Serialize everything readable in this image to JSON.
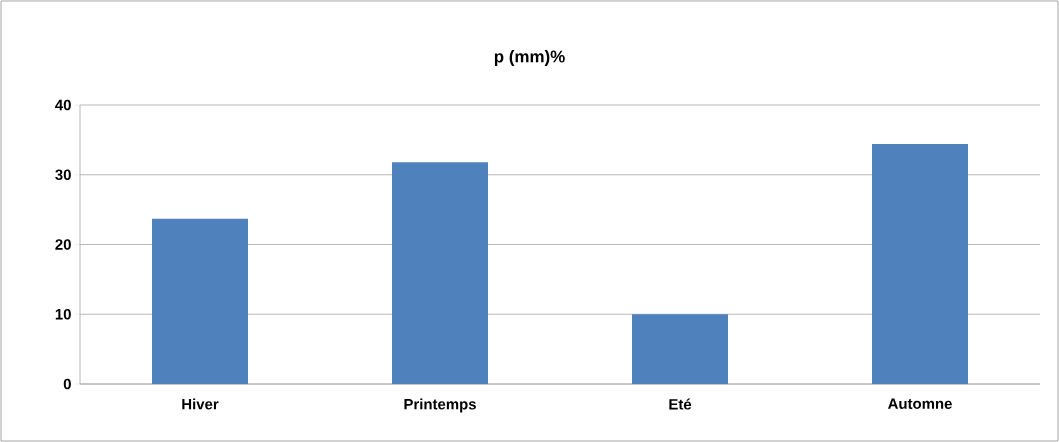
{
  "chart_data": {
    "type": "bar",
    "title": "p (mm)%",
    "categories": [
      "Hiver",
      "Printemps",
      "Eté",
      "Automne"
    ],
    "values": [
      23.7,
      31.8,
      10.0,
      34.4
    ],
    "color": "#4f81bd",
    "ylim": [
      0,
      40
    ],
    "yticks": [
      0,
      10,
      20,
      30,
      40
    ],
    "grid": "y"
  }
}
